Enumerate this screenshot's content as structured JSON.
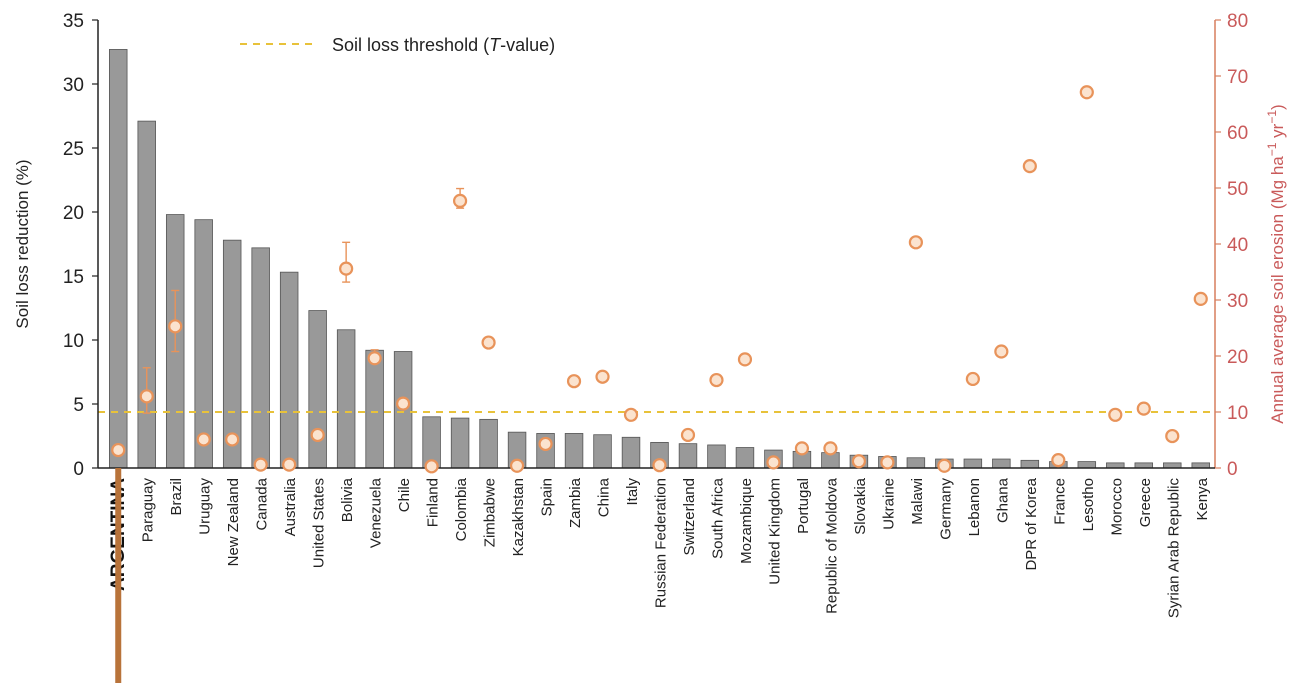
{
  "chart_data": {
    "type": "bar",
    "legend": {
      "label_prefix": "Soil loss threshold (",
      "label_italic": "T",
      "label_suffix": "-value)",
      "placement": "top-left"
    },
    "ylabel_left": "Soil loss reduction (%)",
    "ylabel_right_prefix": "Annual average soil erosion (Mg ha",
    "ylabel_right_sup1": "−1",
    "ylabel_right_mid": " yr",
    "ylabel_right_sup2": "−1",
    "ylabel_right_suffix": ")",
    "ylim_left": [
      0,
      35
    ],
    "yticks_left": [
      0,
      5,
      10,
      15,
      20,
      25,
      30,
      35
    ],
    "ylim_right": [
      0,
      80
    ],
    "yticks_right": [
      0,
      10,
      20,
      30,
      40,
      50,
      60,
      70,
      80
    ],
    "threshold_right": 10,
    "highlight": "ARGENTINA",
    "categories": [
      "ARGENTINA",
      "Paraguay",
      "Brazil",
      "Uruguay",
      "New Zealand",
      "Canada",
      "Australia",
      "United States",
      "Bolivia",
      "Venezuela",
      "Chile",
      "Finland",
      "Colombia",
      "Zimbabwe",
      "Kazakhstan",
      "Spain",
      "Zambia",
      "China",
      "Italy",
      "Russian Federation",
      "Switzerland",
      "South Africa",
      "Mozambique",
      "United Kingdom",
      "Portugal",
      "Republic of Moldova",
      "Slovakia",
      "Ukraine",
      "Malawi",
      "Germany",
      "Lebanon",
      "Ghana",
      "DPR of Korea",
      "France",
      "Lesotho",
      "Morocco",
      "Greece",
      "Syrian Arab Republic",
      "Kenya"
    ],
    "series": [
      {
        "axis": "left",
        "values": [
          32.7,
          27.1,
          19.8,
          19.4,
          17.8,
          17.2,
          15.3,
          12.3,
          10.8,
          9.2,
          9.1,
          4.0,
          3.9,
          3.8,
          2.8,
          2.7,
          2.7,
          2.6,
          2.4,
          2.0,
          1.9,
          1.8,
          1.6,
          1.4,
          1.3,
          1.2,
          1.0,
          0.9,
          0.8,
          0.7,
          0.7,
          0.7,
          0.6,
          0.5,
          0.5,
          0.4,
          0.4,
          0.4,
          0.4
        ],
        "color": "#999999"
      },
      {
        "axis": "right",
        "values": [
          3.2,
          12.8,
          25.3,
          5.1,
          5.1,
          0.6,
          0.6,
          5.9,
          35.6,
          19.6,
          11.5,
          0.3,
          47.7,
          22.4,
          0.4,
          4.3,
          15.5,
          16.3,
          9.5,
          0.5,
          5.9,
          15.7,
          19.4,
          1.0,
          3.5,
          3.5,
          1.2,
          1.0,
          40.3,
          0.4,
          15.9,
          20.8,
          53.9,
          1.4,
          67.1,
          9.5,
          10.6,
          5.7,
          30.2
        ],
        "err_low": [
          null,
          9.8,
          20.8,
          null,
          null,
          null,
          null,
          null,
          33.2,
          null,
          null,
          null,
          46.4,
          null,
          null,
          null,
          null,
          null,
          null,
          null,
          null,
          null,
          null,
          null,
          null,
          null,
          null,
          null,
          null,
          null,
          null,
          null,
          null,
          null,
          null,
          null,
          null,
          null,
          null
        ],
        "err_high": [
          null,
          17.9,
          31.7,
          null,
          null,
          null,
          null,
          null,
          40.3,
          21.1,
          null,
          null,
          49.9,
          null,
          null,
          null,
          null,
          null,
          null,
          null,
          null,
          null,
          null,
          null,
          null,
          null,
          null,
          null,
          null,
          null,
          null,
          null,
          null,
          null,
          null,
          null,
          null,
          null,
          null
        ],
        "color": "#e8935a"
      }
    ],
    "colors": {
      "bar": "#999999",
      "bar_stroke": "#555555",
      "marker": "#e8935a",
      "marker_fill": "#fbe3cf",
      "threshold": "#e8c23a",
      "highlight": "#b8733a",
      "axis_left": "#222222",
      "axis_right": "#d77f5f",
      "right_text": "#c95a5a"
    },
    "grid": false
  }
}
